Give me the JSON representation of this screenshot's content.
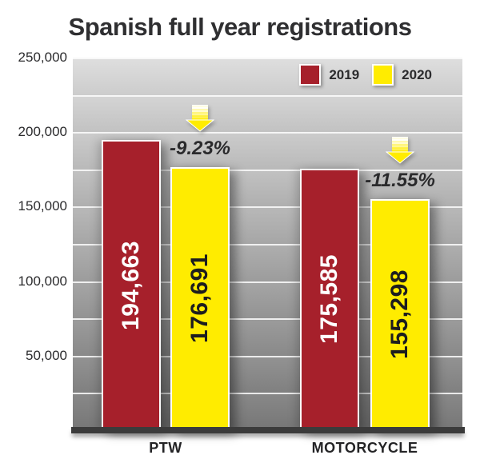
{
  "title": "Spanish full year registrations",
  "chart_data": {
    "type": "bar",
    "title": "Spanish full year registrations",
    "categories": [
      "PTW",
      "MOTORCYCLE"
    ],
    "series": [
      {
        "name": "2019",
        "color": "#a6202b",
        "label_color": "#ffffff",
        "values": [
          194663,
          175585
        ],
        "value_labels": [
          "194,663",
          "175,585"
        ]
      },
      {
        "name": "2020",
        "color": "#ffec00",
        "label_color": "#1d1d1f",
        "values": [
          176691,
          155298
        ],
        "value_labels": [
          "176,691",
          "155,298"
        ]
      }
    ],
    "change_labels": [
      "-9.23%",
      "-11.55%"
    ],
    "ylim": [
      0,
      250000
    ],
    "ytick_step": 25000,
    "y_ticks": [
      {
        "value": 250000,
        "label": "250,000"
      },
      {
        "value": 200000,
        "label": "200,000"
      },
      {
        "value": 150000,
        "label": "150,000"
      },
      {
        "value": 100000,
        "label": "100,000"
      },
      {
        "value": 50000,
        "label": "50,000"
      }
    ],
    "grid": true,
    "legend_position": "top-right",
    "colors": {
      "background_top": "#d4d4d4",
      "background_bottom": "#7e7e7e",
      "gridline": "#ffffff",
      "baseline": "#3b3b3b",
      "arrow": "#ffec00",
      "text": "#2d2d2f"
    }
  }
}
